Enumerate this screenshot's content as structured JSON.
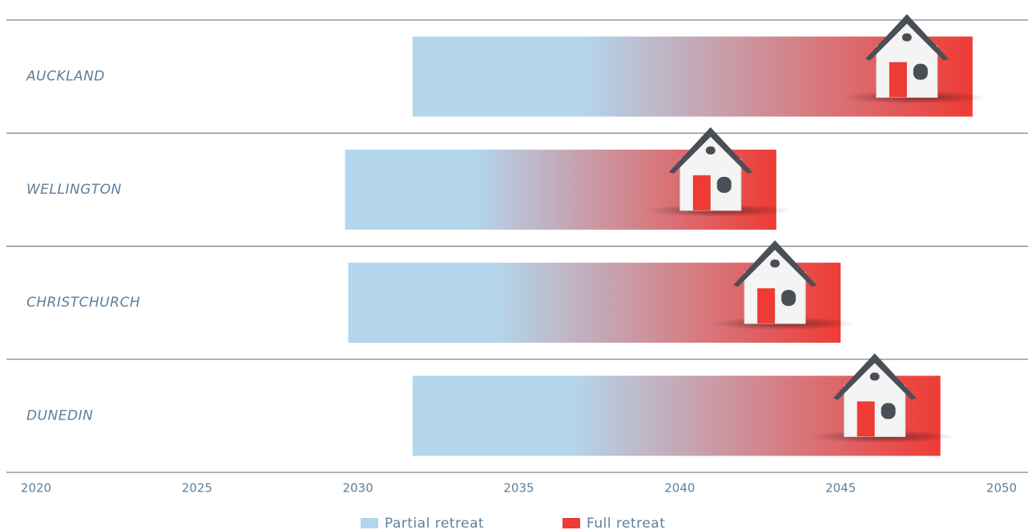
{
  "chart_data": {
    "type": "range-bar",
    "categories": [
      "AUCKLAND",
      "WELLINGTON",
      "CHRISTCHURCH",
      "DUNEDIN"
    ],
    "start": [
      2031.7,
      2029.6,
      2029.7,
      2031.7
    ],
    "end": [
      2049.1,
      2043,
      2045,
      2048.1
    ],
    "legend": [
      {
        "name": "Partial retreat",
        "color": "#b3d6ec"
      },
      {
        "name": "Full retreat",
        "color": "#ee3b35"
      }
    ],
    "xlim": [
      2020,
      2050
    ],
    "xticks": [
      2020,
      2025,
      2030,
      2035,
      2040,
      2045,
      2050
    ]
  }
}
